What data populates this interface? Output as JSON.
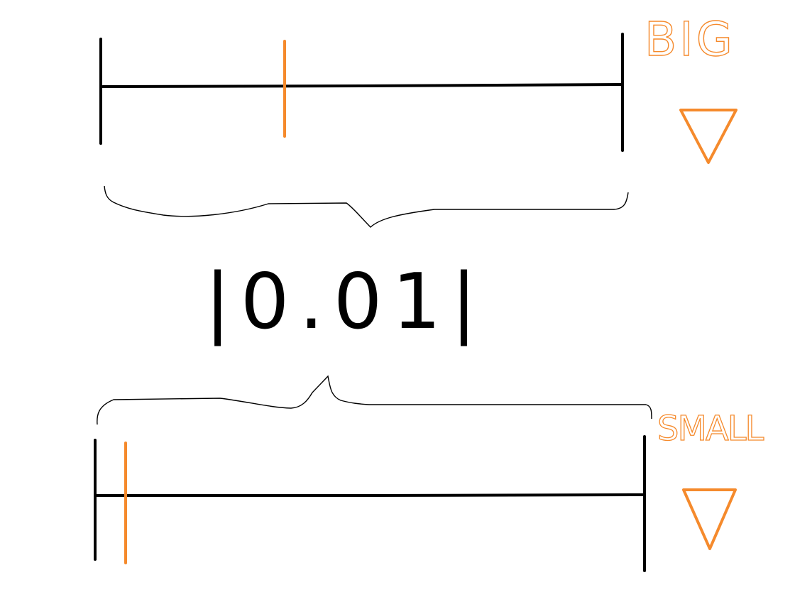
{
  "diagram": {
    "top_label": "BIG",
    "bottom_label": "SMALL",
    "center_value": "|0.01|",
    "colors": {
      "line": "#000000",
      "accent": "#f58a2c",
      "background": "#ffffff"
    },
    "icons": {
      "top_marker": "down-triangle-icon",
      "bottom_marker": "down-triangle-icon"
    }
  }
}
